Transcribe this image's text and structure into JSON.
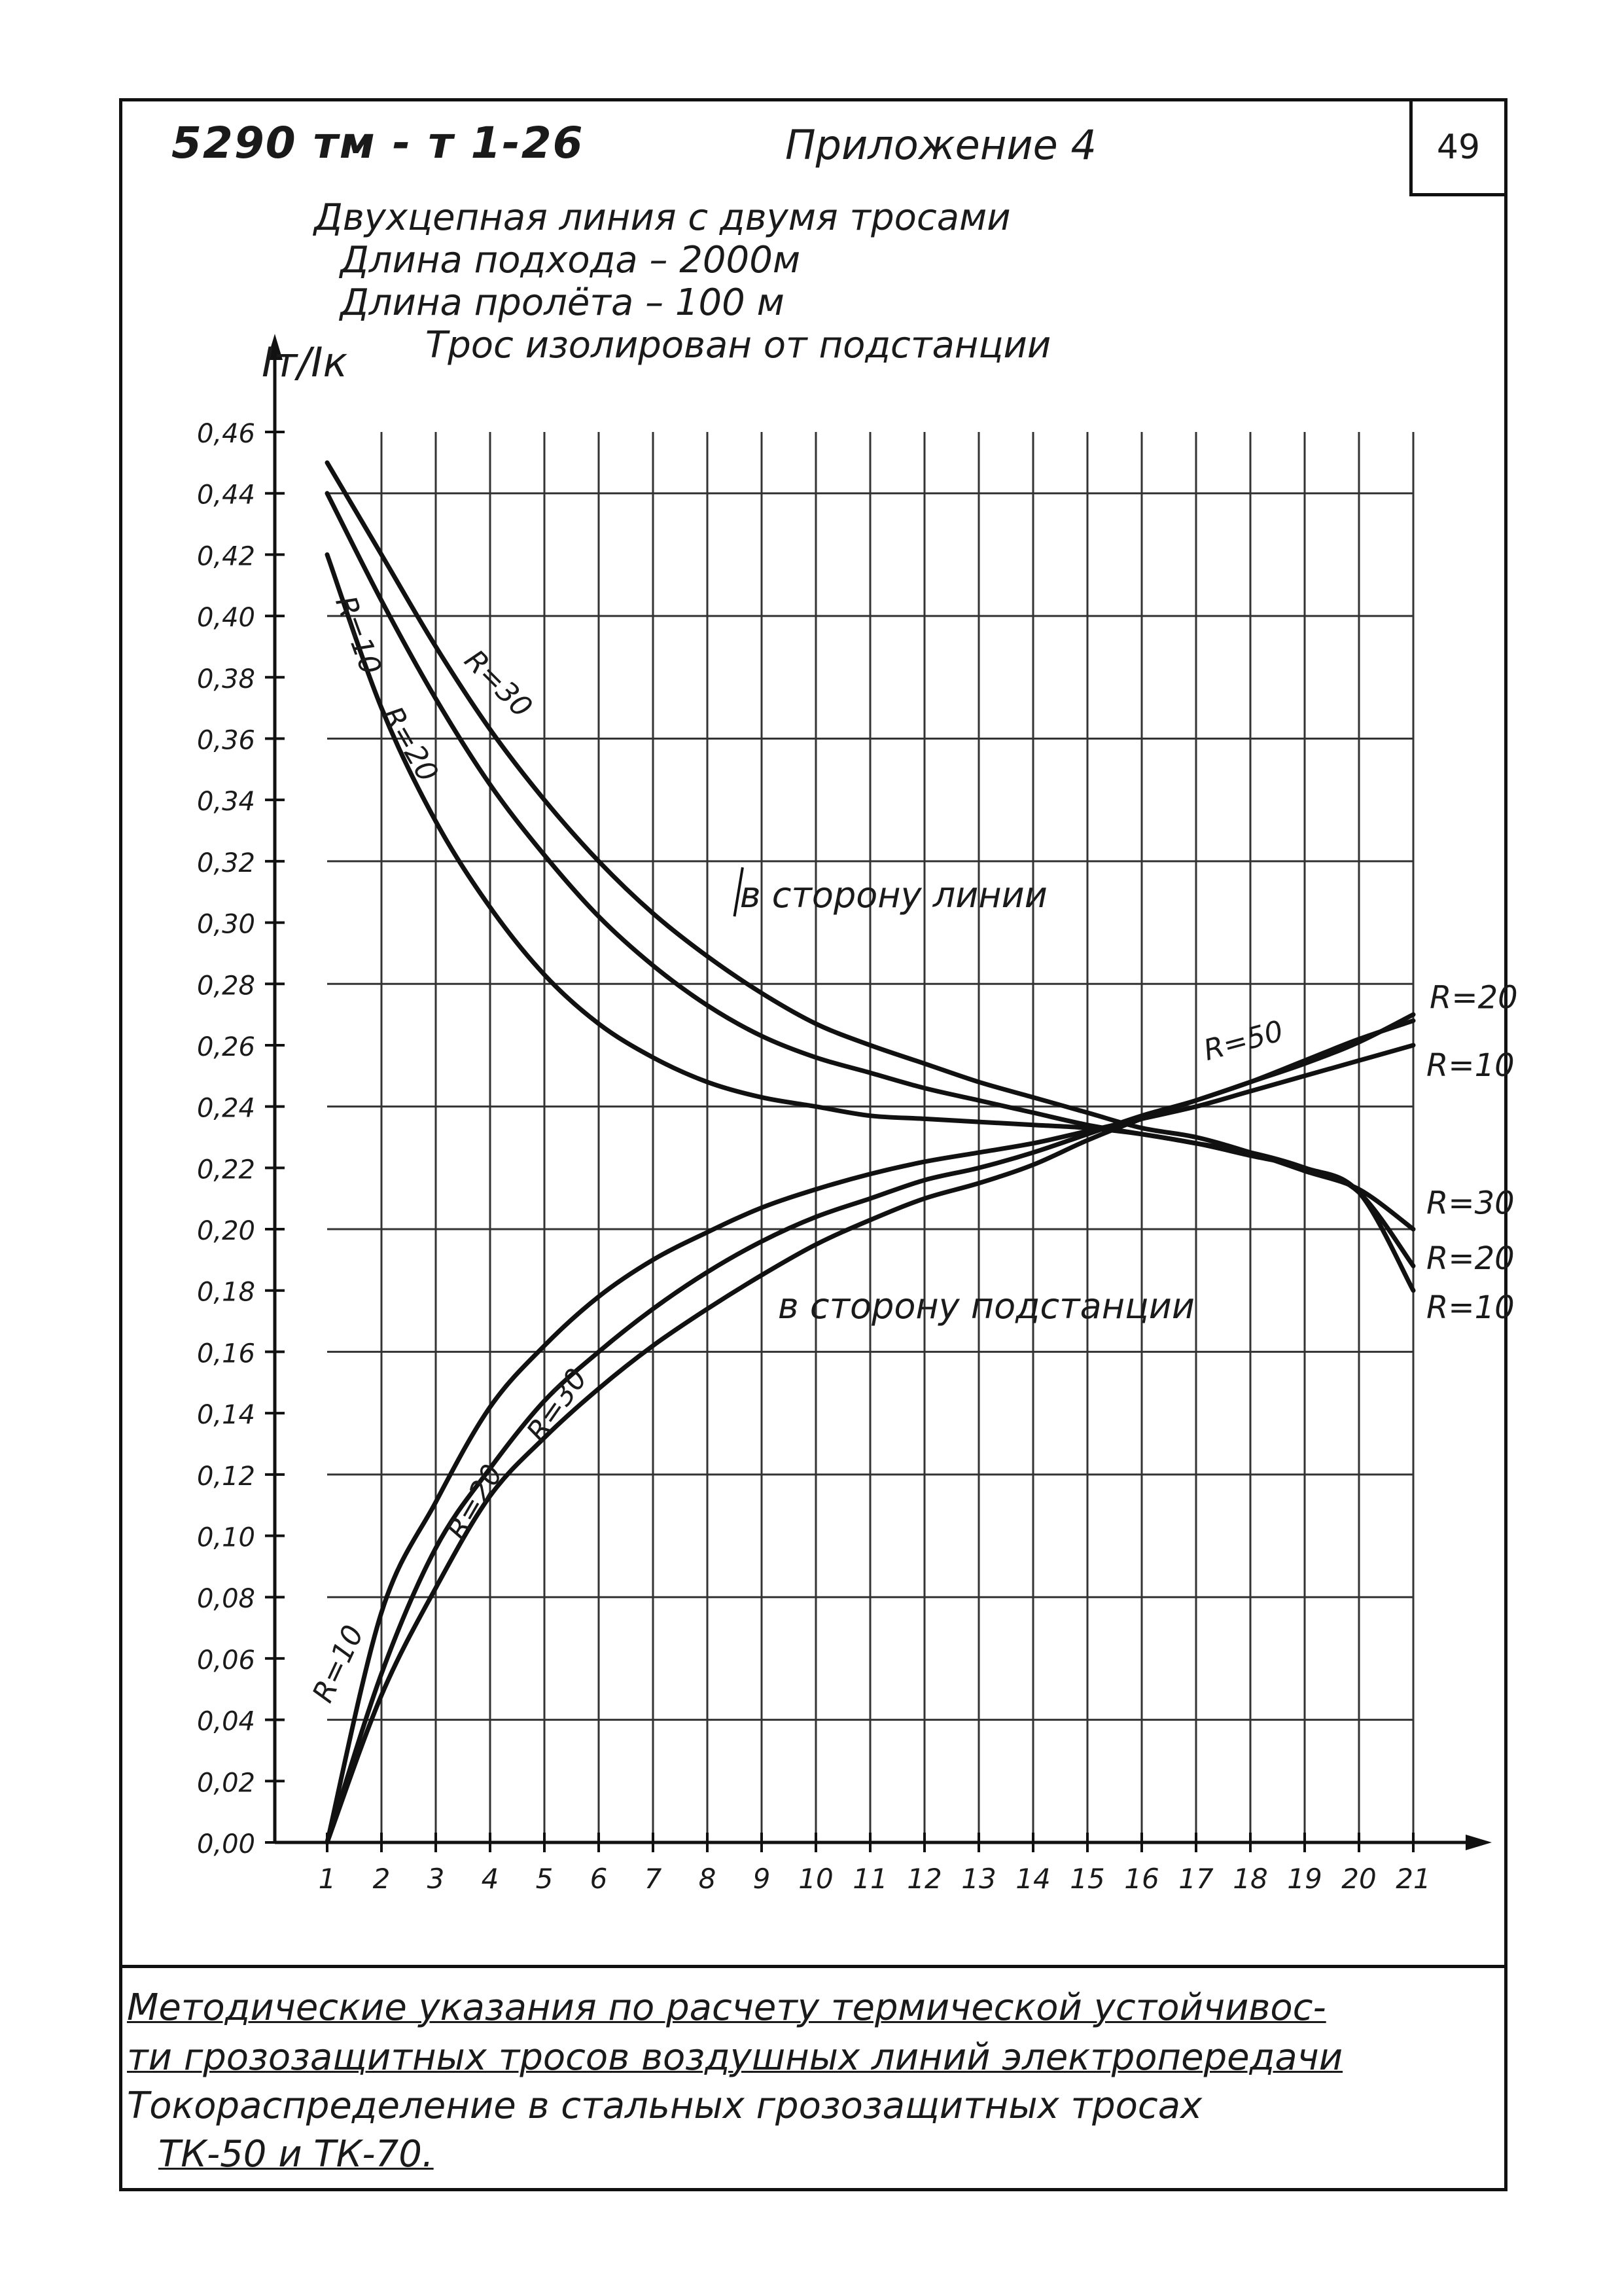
{
  "header": {
    "doc_code": "5290 тм - т 1-26",
    "appendix": "Приложение 4",
    "sheet_number": "49"
  },
  "title": {
    "line1": "Двухцепная линия с двумя тросами",
    "line2": "Длина подхода – 2000м",
    "line3": "Длина пролёта – 100 м",
    "line4": "Трос изолирован от подстанции"
  },
  "chart_data": {
    "type": "line",
    "ylabel": "Iт/Iк",
    "xlabel": "",
    "x": [
      1,
      2,
      3,
      4,
      5,
      6,
      7,
      8,
      9,
      10,
      11,
      12,
      13,
      14,
      15,
      16,
      17,
      18,
      19,
      20,
      21
    ],
    "x_tick_labels": [
      "1",
      "2",
      "3",
      "4",
      "5",
      "6",
      "7",
      "8",
      "9",
      "10",
      "11",
      "12",
      "13",
      "14",
      "15",
      "16",
      "17",
      "18",
      "19",
      "20",
      "21"
    ],
    "xlim": [
      1,
      21
    ],
    "ylim": [
      0,
      0.46
    ],
    "y_ticks": [
      0.0,
      0.02,
      0.04,
      0.06,
      0.08,
      0.1,
      0.12,
      0.14,
      0.16,
      0.18,
      0.2,
      0.22,
      0.24,
      0.26,
      0.28,
      0.3,
      0.32,
      0.34,
      0.36,
      0.38,
      0.4,
      0.42,
      0.44,
      0.46
    ],
    "y_tick_labels": [
      "0,00",
      "0,02",
      "0,04",
      "0,06",
      "0,08",
      "0,10",
      "0,12",
      "0,14",
      "0,16",
      "0,18",
      "0,20",
      "0,22",
      "0,24",
      "0,26",
      "0,28",
      "0,30",
      "0,32",
      "0,34",
      "0,36",
      "0,38",
      "0,40",
      "0,42",
      "0,44",
      "0,46"
    ],
    "grid": true,
    "annotations": {
      "toward_line": "в сторону линии",
      "toward_substation": "в сторону подстанции",
      "right_labels_top": [
        "R=20",
        "R=10"
      ],
      "right_labels_bottom": [
        "R=30",
        "R=20",
        "R=10"
      ],
      "inline_labels": [
        "R=10",
        "R=20",
        "R=30",
        "R=50",
        "R=10",
        "R=20",
        "R=30"
      ]
    },
    "series": [
      {
        "group": "toward_line",
        "label": "R=10",
        "values": [
          0.42,
          0.37,
          0.333,
          0.305,
          0.283,
          0.267,
          0.256,
          0.248,
          0.243,
          0.24,
          0.237,
          0.236,
          0.235,
          0.234,
          0.233,
          0.231,
          0.228,
          0.225,
          0.22,
          0.212,
          0.18
        ]
      },
      {
        "group": "toward_line",
        "label": "R=20",
        "values": [
          0.44,
          0.405,
          0.373,
          0.345,
          0.322,
          0.302,
          0.286,
          0.273,
          0.263,
          0.256,
          0.251,
          0.246,
          0.242,
          0.238,
          0.234,
          0.231,
          0.228,
          0.224,
          0.22,
          0.212,
          0.188
        ]
      },
      {
        "group": "toward_line",
        "label": "R=30",
        "values": [
          0.45,
          0.42,
          0.39,
          0.363,
          0.34,
          0.32,
          0.303,
          0.289,
          0.277,
          0.267,
          0.26,
          0.254,
          0.248,
          0.243,
          0.238,
          0.233,
          0.23,
          0.225,
          0.219,
          0.213,
          0.2
        ]
      },
      {
        "group": "toward_substation",
        "label": "R=10",
        "values": [
          0.0,
          0.075,
          0.111,
          0.142,
          0.162,
          0.178,
          0.19,
          0.199,
          0.207,
          0.213,
          0.218,
          0.222,
          0.225,
          0.228,
          0.232,
          0.236,
          0.24,
          0.245,
          0.25,
          0.255,
          0.26
        ]
      },
      {
        "group": "toward_substation",
        "label": "R=20",
        "values": [
          0.0,
          0.055,
          0.096,
          0.122,
          0.144,
          0.16,
          0.174,
          0.186,
          0.196,
          0.204,
          0.21,
          0.216,
          0.22,
          0.225,
          0.231,
          0.237,
          0.242,
          0.248,
          0.254,
          0.261,
          0.27
        ]
      },
      {
        "group": "toward_substation",
        "label": "R=30",
        "values": [
          0.0,
          0.048,
          0.083,
          0.113,
          0.132,
          0.148,
          0.162,
          0.174,
          0.185,
          0.195,
          0.203,
          0.21,
          0.215,
          0.221,
          0.229,
          0.236,
          0.242,
          0.248,
          0.255,
          0.262,
          0.268
        ]
      }
    ]
  },
  "footer": {
    "line1": "Методические указания по расчету термической устойчивос-",
    "line2": "ти грозозащитных тросов воздушных линий электропередачи",
    "line3": "Токораспределение в стальных грозозащитных тросах",
    "line4": "ТК-50  и ТК-70."
  }
}
